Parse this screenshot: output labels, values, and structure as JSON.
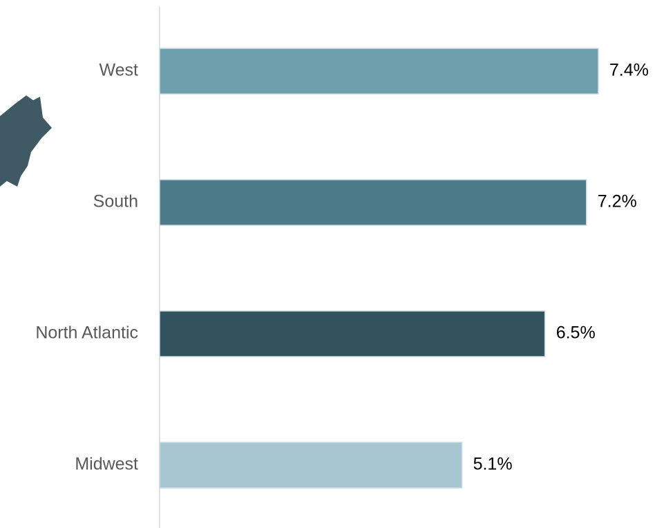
{
  "chart_data": {
    "type": "bar",
    "orientation": "horizontal",
    "categories": [
      "West",
      "South",
      "North Atlantic",
      "Midwest"
    ],
    "values": [
      7.4,
      7.2,
      6.5,
      5.1
    ],
    "value_labels": [
      "7.4%",
      "7.2%",
      "6.5%",
      "5.1%"
    ],
    "colors": [
      "#6f9fad",
      "#4d7a88",
      "#33535f",
      "#a8c6cf"
    ]
  }
}
